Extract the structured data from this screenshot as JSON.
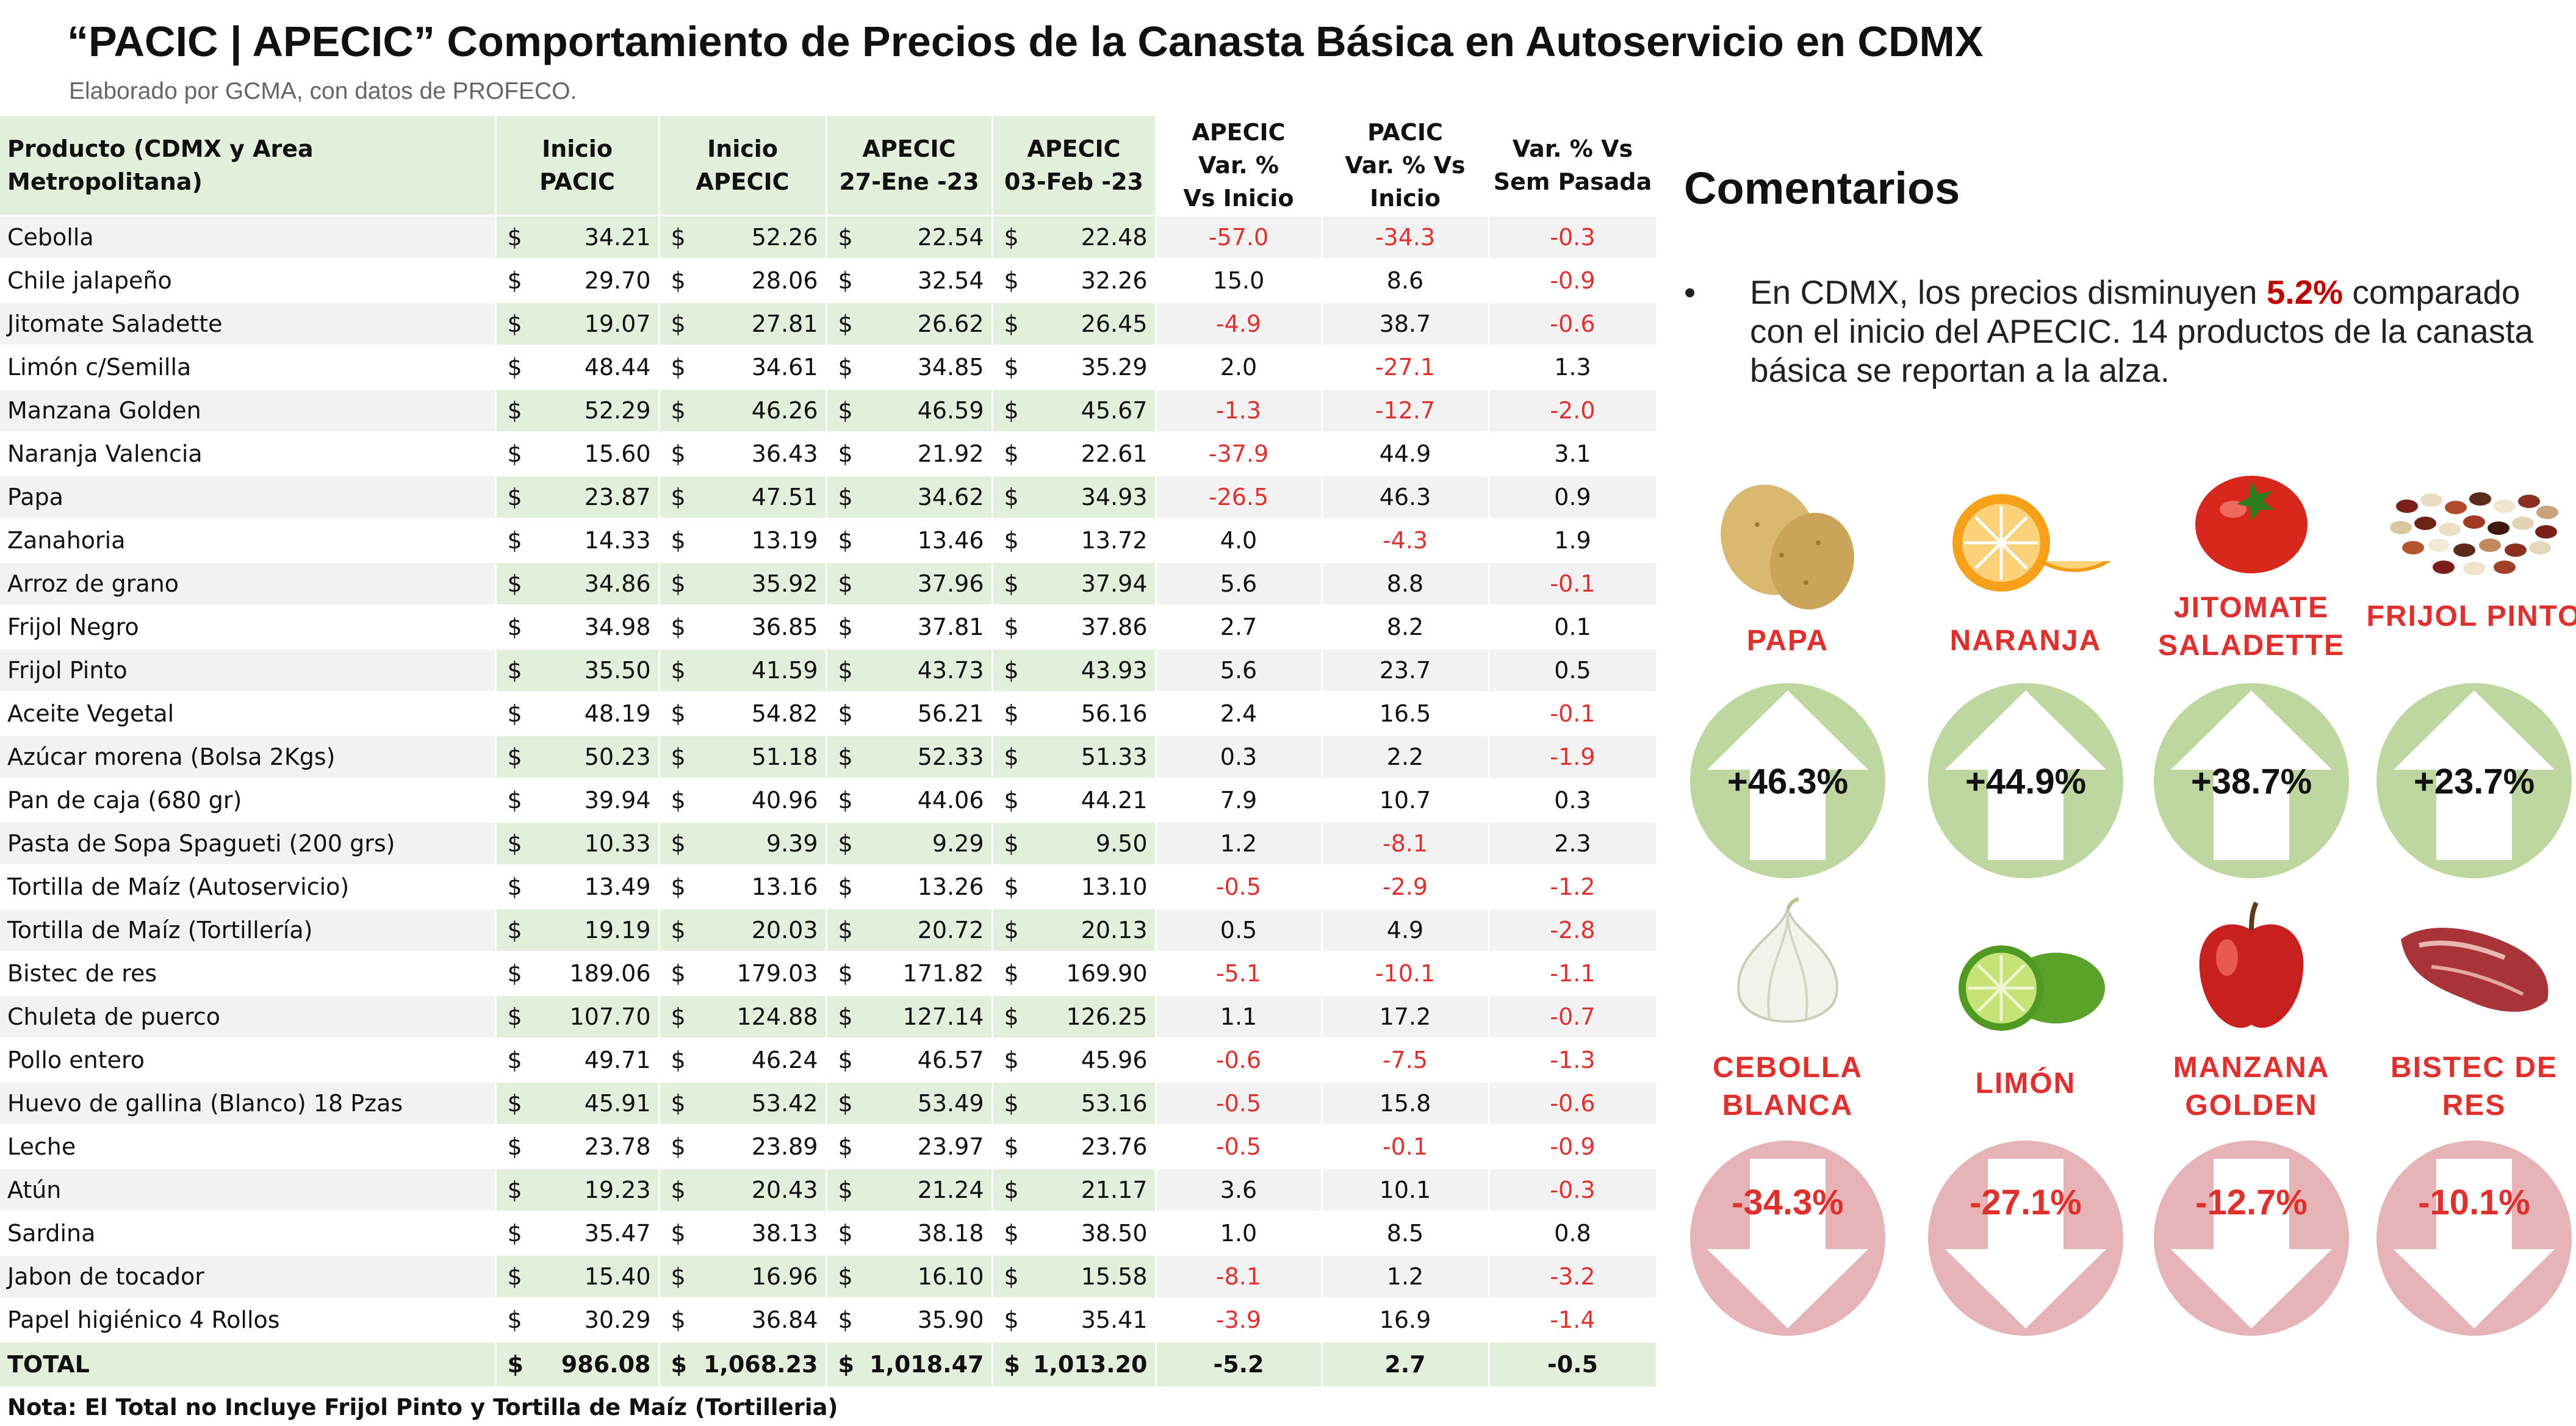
{
  "title": "“PACIC | APECIC” Comportamiento de Precios de la Canasta Básica en Autoservicio en CDMX",
  "subtitle": "Elaborado por GCMA, con datos de PROFECO.",
  "table": {
    "headers": {
      "product": "Producto (CDMX y Area Metropolitana)",
      "inicio_pacic": [
        "Inicio",
        "PACIC"
      ],
      "inicio_apecic": [
        "Inicio",
        "APECIC"
      ],
      "apecic_27": [
        "APECIC",
        "27-Ene -23"
      ],
      "apecic_03": [
        "APECIC",
        "03-Feb -23"
      ],
      "var_apecic": [
        "APECIC",
        "Var. %",
        "Vs  Inicio"
      ],
      "var_pacic": [
        "PACIC",
        "Var. % Vs",
        "Inicio"
      ],
      "var_sem": [
        "Var. % Vs",
        "Sem Pasada"
      ]
    },
    "rows": [
      {
        "product": "Cebolla",
        "inicio_pacic": "34.21",
        "inicio_apecic": "52.26",
        "apecic_27": "22.54",
        "apecic_03": "22.48",
        "var_apecic": "-57.0",
        "var_pacic": "-34.3",
        "var_sem": "-0.3"
      },
      {
        "product": "Chile jalapeño",
        "inicio_pacic": "29.70",
        "inicio_apecic": "28.06",
        "apecic_27": "32.54",
        "apecic_03": "32.26",
        "var_apecic": "15.0",
        "var_pacic": "8.6",
        "var_sem": "-0.9"
      },
      {
        "product": "Jitomate Saladette",
        "inicio_pacic": "19.07",
        "inicio_apecic": "27.81",
        "apecic_27": "26.62",
        "apecic_03": "26.45",
        "var_apecic": "-4.9",
        "var_pacic": "38.7",
        "var_sem": "-0.6"
      },
      {
        "product": "Limón c/Semilla",
        "inicio_pacic": "48.44",
        "inicio_apecic": "34.61",
        "apecic_27": "34.85",
        "apecic_03": "35.29",
        "var_apecic": "2.0",
        "var_pacic": "-27.1",
        "var_sem": "1.3"
      },
      {
        "product": "Manzana Golden",
        "inicio_pacic": "52.29",
        "inicio_apecic": "46.26",
        "apecic_27": "46.59",
        "apecic_03": "45.67",
        "var_apecic": "-1.3",
        "var_pacic": "-12.7",
        "var_sem": "-2.0"
      },
      {
        "product": "Naranja Valencia",
        "inicio_pacic": "15.60",
        "inicio_apecic": "36.43",
        "apecic_27": "21.92",
        "apecic_03": "22.61",
        "var_apecic": "-37.9",
        "var_pacic": "44.9",
        "var_sem": "3.1"
      },
      {
        "product": "Papa",
        "inicio_pacic": "23.87",
        "inicio_apecic": "47.51",
        "apecic_27": "34.62",
        "apecic_03": "34.93",
        "var_apecic": "-26.5",
        "var_pacic": "46.3",
        "var_sem": "0.9"
      },
      {
        "product": "Zanahoria",
        "inicio_pacic": "14.33",
        "inicio_apecic": "13.19",
        "apecic_27": "13.46",
        "apecic_03": "13.72",
        "var_apecic": "4.0",
        "var_pacic": "-4.3",
        "var_sem": "1.9"
      },
      {
        "product": "Arroz de grano",
        "inicio_pacic": "34.86",
        "inicio_apecic": "35.92",
        "apecic_27": "37.96",
        "apecic_03": "37.94",
        "var_apecic": "5.6",
        "var_pacic": "8.8",
        "var_sem": "-0.1"
      },
      {
        "product": "Frijol Negro",
        "inicio_pacic": "34.98",
        "inicio_apecic": "36.85",
        "apecic_27": "37.81",
        "apecic_03": "37.86",
        "var_apecic": "2.7",
        "var_pacic": "8.2",
        "var_sem": "0.1"
      },
      {
        "product": "Frijol Pinto",
        "inicio_pacic": "35.50",
        "inicio_apecic": "41.59",
        "apecic_27": "43.73",
        "apecic_03": "43.93",
        "var_apecic": "5.6",
        "var_pacic": "23.7",
        "var_sem": "0.5"
      },
      {
        "product": "Aceite Vegetal",
        "inicio_pacic": "48.19",
        "inicio_apecic": "54.82",
        "apecic_27": "56.21",
        "apecic_03": "56.16",
        "var_apecic": "2.4",
        "var_pacic": "16.5",
        "var_sem": "-0.1"
      },
      {
        "product": "Azúcar morena (Bolsa 2Kgs)",
        "inicio_pacic": "50.23",
        "inicio_apecic": "51.18",
        "apecic_27": "52.33",
        "apecic_03": "51.33",
        "var_apecic": "0.3",
        "var_pacic": "2.2",
        "var_sem": "-1.9"
      },
      {
        "product": "Pan de caja (680 gr)",
        "inicio_pacic": "39.94",
        "inicio_apecic": "40.96",
        "apecic_27": "44.06",
        "apecic_03": "44.21",
        "var_apecic": "7.9",
        "var_pacic": "10.7",
        "var_sem": "0.3"
      },
      {
        "product": "Pasta de Sopa Spagueti (200 grs)",
        "inicio_pacic": "10.33",
        "inicio_apecic": "9.39",
        "apecic_27": "9.29",
        "apecic_03": "9.50",
        "var_apecic": "1.2",
        "var_pacic": "-8.1",
        "var_sem": "2.3"
      },
      {
        "product": "Tortilla de Maíz (Autoservicio)",
        "inicio_pacic": "13.49",
        "inicio_apecic": "13.16",
        "apecic_27": "13.26",
        "apecic_03": "13.10",
        "var_apecic": "-0.5",
        "var_pacic": "-2.9",
        "var_sem": "-1.2"
      },
      {
        "product": "Tortilla de Maíz (Tortillería)",
        "inicio_pacic": "19.19",
        "inicio_apecic": "20.03",
        "apecic_27": "20.72",
        "apecic_03": "20.13",
        "var_apecic": "0.5",
        "var_pacic": "4.9",
        "var_sem": "-2.8"
      },
      {
        "product": "Bistec de res",
        "inicio_pacic": "189.06",
        "inicio_apecic": "179.03",
        "apecic_27": "171.82",
        "apecic_03": "169.90",
        "var_apecic": "-5.1",
        "var_pacic": "-10.1",
        "var_sem": "-1.1"
      },
      {
        "product": "Chuleta de puerco",
        "inicio_pacic": "107.70",
        "inicio_apecic": "124.88",
        "apecic_27": "127.14",
        "apecic_03": "126.25",
        "var_apecic": "1.1",
        "var_pacic": "17.2",
        "var_sem": "-0.7"
      },
      {
        "product": "Pollo entero",
        "inicio_pacic": "49.71",
        "inicio_apecic": "46.24",
        "apecic_27": "46.57",
        "apecic_03": "45.96",
        "var_apecic": "-0.6",
        "var_pacic": "-7.5",
        "var_sem": "-1.3"
      },
      {
        "product": "Huevo de gallina (Blanco) 18 Pzas",
        "inicio_pacic": "45.91",
        "inicio_apecic": "53.42",
        "apecic_27": "53.49",
        "apecic_03": "53.16",
        "var_apecic": "-0.5",
        "var_pacic": "15.8",
        "var_sem": "-0.6"
      },
      {
        "product": "Leche",
        "inicio_pacic": "23.78",
        "inicio_apecic": "23.89",
        "apecic_27": "23.97",
        "apecic_03": "23.76",
        "var_apecic": "-0.5",
        "var_pacic": "-0.1",
        "var_sem": "-0.9"
      },
      {
        "product": "Atún",
        "inicio_pacic": "19.23",
        "inicio_apecic": "20.43",
        "apecic_27": "21.24",
        "apecic_03": "21.17",
        "var_apecic": "3.6",
        "var_pacic": "10.1",
        "var_sem": "-0.3"
      },
      {
        "product": "Sardina",
        "inicio_pacic": "35.47",
        "inicio_apecic": "38.13",
        "apecic_27": "38.18",
        "apecic_03": "38.50",
        "var_apecic": "1.0",
        "var_pacic": "8.5",
        "var_sem": "0.8"
      },
      {
        "product": "Jabon de tocador",
        "inicio_pacic": "15.40",
        "inicio_apecic": "16.96",
        "apecic_27": "16.10",
        "apecic_03": "15.58",
        "var_apecic": "-8.1",
        "var_pacic": "1.2",
        "var_sem": "-3.2"
      },
      {
        "product": "Papel higiénico 4 Rollos",
        "inicio_pacic": "30.29",
        "inicio_apecic": "36.84",
        "apecic_27": "35.90",
        "apecic_03": "35.41",
        "var_apecic": "-3.9",
        "var_pacic": "16.9",
        "var_sem": "-1.4"
      }
    ],
    "total": {
      "product": "TOTAL",
      "inicio_pacic": "986.08",
      "inicio_apecic": "1,068.23",
      "apecic_27": "1,018.47",
      "apecic_03": "1,013.20",
      "var_apecic": "-5.2",
      "var_pacic": "2.7",
      "var_sem": "-0.5"
    }
  },
  "note": "Nota: El Total no Incluye Frijol Pinto y Tortilla de Maíz (Tortilleria)",
  "comments": {
    "title": "Comentarios",
    "bullet": "•",
    "text_before": "En CDMX, los precios disminuyen ",
    "highlight": "5.2%",
    "text_after": " comparado con el inicio del APECIC. 14 productos de la canasta básica se reportan a la alza."
  },
  "cards_up": [
    {
      "name": "PAPA",
      "value": "+46.3%",
      "icon": "potato-icon"
    },
    {
      "name": "NARANJA",
      "value": "+44.9%",
      "icon": "orange-icon"
    },
    {
      "name": "JITOMATE SALADETTE",
      "value": "+38.7%",
      "icon": "tomato-icon"
    },
    {
      "name": "FRIJOL PINTO",
      "value": "+23.7%",
      "icon": "beans-icon"
    }
  ],
  "cards_down": [
    {
      "name": "CEBOLLA BLANCA",
      "value": "-34.3%",
      "icon": "onion-icon"
    },
    {
      "name": "LIMÓN",
      "value": "-27.1%",
      "icon": "lime-icon"
    },
    {
      "name": "MANZANA GOLDEN",
      "value": "-12.7%",
      "icon": "apple-icon"
    },
    {
      "name": "BISTEC DE RES",
      "value": "-10.1%",
      "icon": "beef-icon"
    }
  ],
  "colors": {
    "header_green": "#e2efda",
    "row_stripe": "#f2f2f2",
    "negative_red": "#e0302d",
    "up_circle": "#bed7a1",
    "down_circle": "#e6b4b6",
    "highlight_red": "#c00000"
  }
}
